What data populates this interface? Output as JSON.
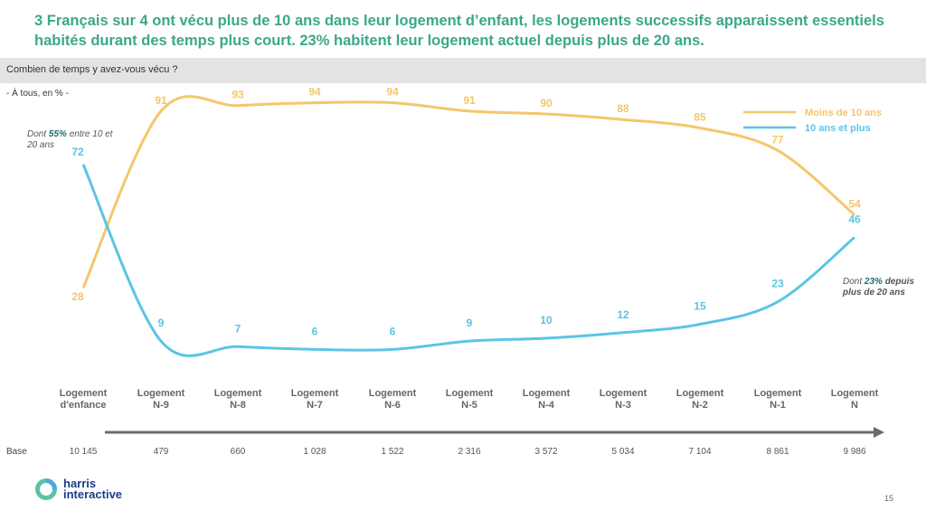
{
  "title": "3 Français sur 4 ont vécu plus de 10 ans dans leur logement d’enfant, les logements successifs apparaissent essentiels habités durant des temps plus court. 23% habitent leur logement actuel depuis plus de 20 ans.",
  "question": "Combien de temps y avez-vous vécu ?",
  "subtitle": "- À tous, en % -",
  "notes": {
    "left": {
      "prefix": "Dont ",
      "highlight": "55%",
      "suffix": " entre 10 et 20 ans"
    },
    "right": {
      "prefix": "Dont ",
      "highlight": "23%",
      "suffix": " depuis plus de 20 ans"
    }
  },
  "base_label": "Base",
  "page_number": "15",
  "logo": {
    "line1": "harris",
    "line2": "interactive"
  },
  "colors": {
    "title": "#3aa88a",
    "series1": "#f5c66b",
    "series2": "#5bc4e5"
  },
  "chart_data": {
    "type": "line",
    "title": "",
    "categories": [
      "Logement d'enfance",
      "Logement N-9",
      "Logement N-8",
      "Logement N-7",
      "Logement N-6",
      "Logement N-5",
      "Logement N-4",
      "Logement N-3",
      "Logement N-2",
      "Logement N-1",
      "Logement N"
    ],
    "category_lines": [
      [
        "Logement",
        "d'enfance"
      ],
      [
        "Logement",
        "N-9"
      ],
      [
        "Logement",
        "N-8"
      ],
      [
        "Logement",
        "N-7"
      ],
      [
        "Logement",
        "N-6"
      ],
      [
        "Logement",
        "N-5"
      ],
      [
        "Logement",
        "N-4"
      ],
      [
        "Logement",
        "N-3"
      ],
      [
        "Logement",
        "N-2"
      ],
      [
        "Logement",
        "N-1"
      ],
      [
        "Logement",
        "N"
      ]
    ],
    "series": [
      {
        "name": "Moins de 10 ans",
        "values": [
          28,
          91,
          93,
          94,
          94,
          91,
          90,
          88,
          85,
          77,
          54
        ]
      },
      {
        "name": "10 ans et plus",
        "values": [
          72,
          9,
          7,
          6,
          6,
          9,
          10,
          12,
          15,
          23,
          46
        ]
      }
    ],
    "bases": [
      "10 145",
      "479",
      "660",
      "1 028",
      "1 522",
      "2 316",
      "3 572",
      "5 034",
      "7 104",
      "8 861",
      "9 986"
    ],
    "ylim": [
      0,
      100
    ],
    "legend": "top-right",
    "grid": false
  }
}
